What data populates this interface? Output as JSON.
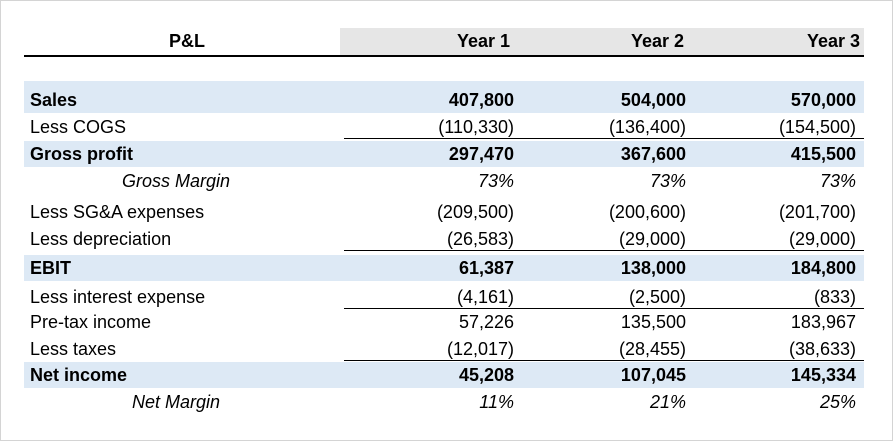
{
  "header": {
    "title": "P&L",
    "years": [
      "Year 1",
      "Year 2",
      "Year 3"
    ]
  },
  "rows": [
    {
      "label": "Sales",
      "values": [
        "407,800",
        "504,000",
        "570,000"
      ]
    },
    {
      "label": "Less COGS",
      "values": [
        "(110,330)",
        "(136,400)",
        "(154,500)"
      ]
    },
    {
      "label": "Gross profit",
      "values": [
        "297,470",
        "367,600",
        "415,500"
      ]
    },
    {
      "label": "Gross Margin",
      "values": [
        "73%",
        "73%",
        "73%"
      ]
    },
    {
      "label": "Less SG&A expenses",
      "values": [
        "(209,500)",
        "(200,600)",
        "(201,700)"
      ]
    },
    {
      "label": "Less depreciation",
      "values": [
        "(26,583)",
        "(29,000)",
        "(29,000)"
      ]
    },
    {
      "label": "EBIT",
      "values": [
        "61,387",
        "138,000",
        "184,800"
      ]
    },
    {
      "label": "Less interest expense",
      "values": [
        "(4,161)",
        "(2,500)",
        "(833)"
      ]
    },
    {
      "label": "Pre-tax income",
      "values": [
        "57,226",
        "135,500",
        "183,967"
      ]
    },
    {
      "label": "Less taxes",
      "values": [
        "(12,017)",
        "(28,455)",
        "(38,633)"
      ]
    },
    {
      "label": "Net income",
      "values": [
        "45,208",
        "107,045",
        "145,334"
      ]
    },
    {
      "label": "Net Margin",
      "values": [
        "11%",
        "21%",
        "25%"
      ]
    }
  ]
}
